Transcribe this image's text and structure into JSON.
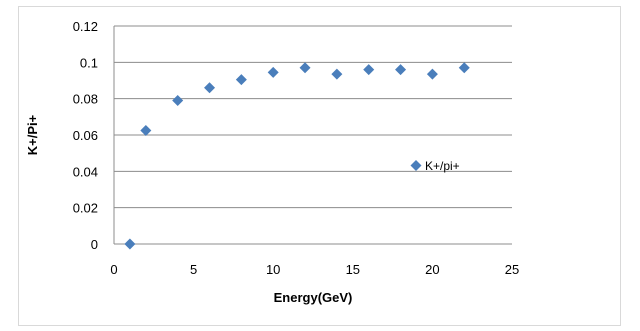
{
  "chart_data": {
    "type": "scatter",
    "title": "",
    "xlabel": "Energy(GeV)",
    "ylabel": "K+/Pi+",
    "xlim": [
      0,
      25
    ],
    "ylim": [
      0,
      0.12
    ],
    "x_ticks": [
      "0",
      "5",
      "10",
      "15",
      "20",
      "25"
    ],
    "y_ticks": [
      "0",
      "0.02",
      "0.04",
      "0.06",
      "0.08",
      "0.1",
      "0.12"
    ],
    "grid": true,
    "legend_position": "right",
    "marker_color": "#4a7ebb",
    "series": [
      {
        "name": "K+/pi+",
        "x": [
          1,
          2,
          4,
          6,
          8,
          10,
          12,
          14,
          16,
          18,
          20,
          22
        ],
        "y": [
          0.0,
          0.0625,
          0.079,
          0.086,
          0.0905,
          0.0945,
          0.097,
          0.0935,
          0.096,
          0.096,
          0.0935,
          0.097
        ]
      }
    ]
  }
}
